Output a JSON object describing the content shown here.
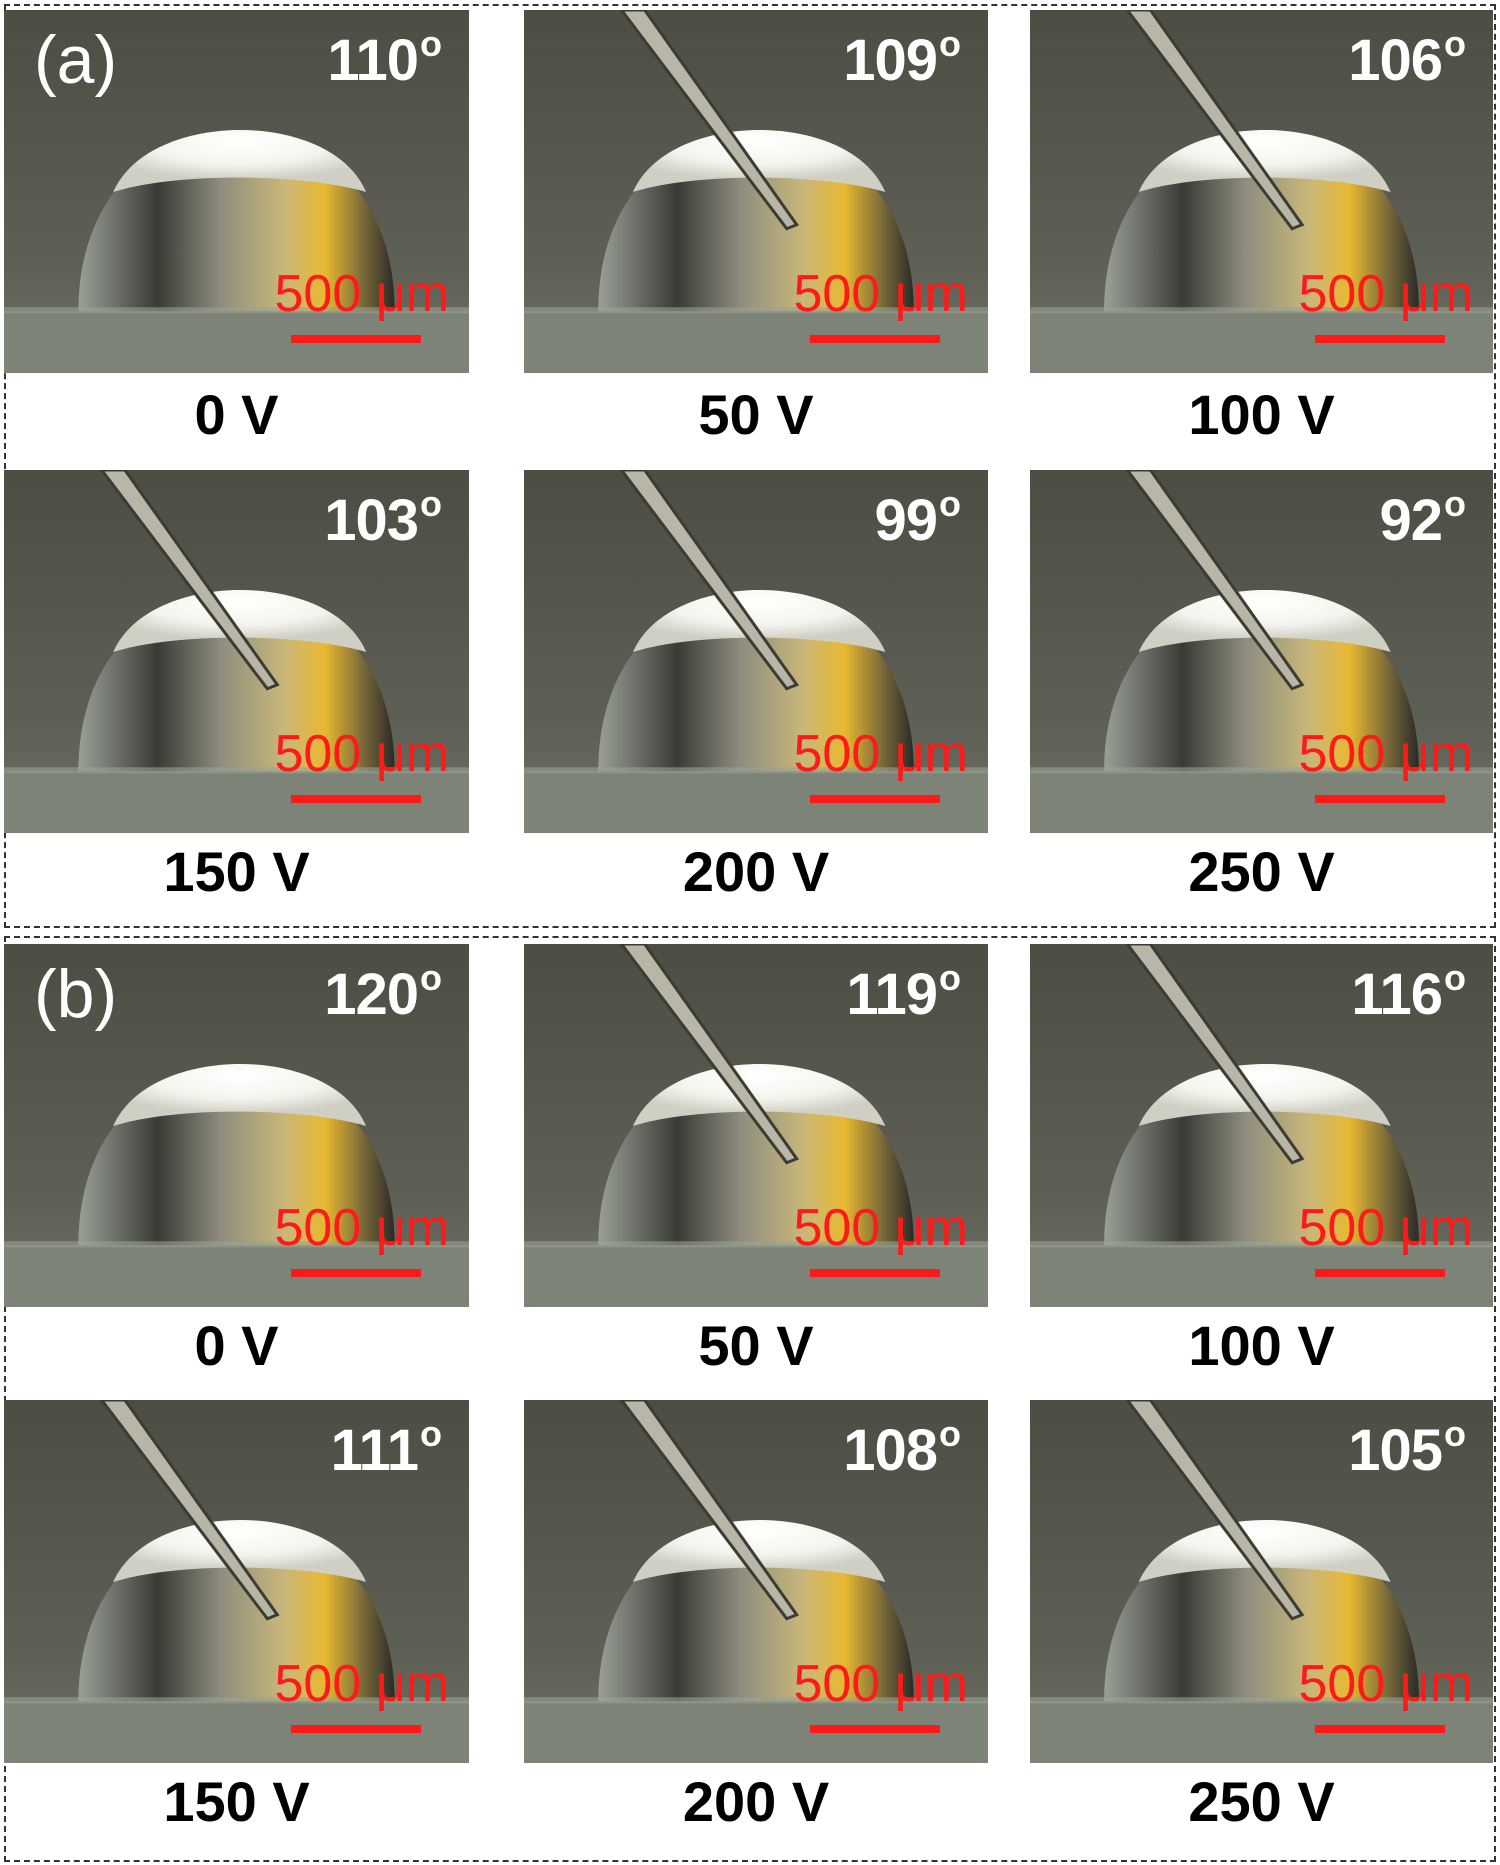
{
  "colors": {
    "scale": "#ff1a1a",
    "angle_text": "#ffffff",
    "background_photo": "#5a5a4e",
    "droplet_highlight": "#ffffff",
    "droplet_yellow": "#e8b830"
  },
  "panels": [
    {
      "label": "(a)",
      "cells": [
        {
          "angle": "110",
          "angle_unit": "o",
          "scale": "500 μm",
          "voltage": "0 V",
          "needle": false
        },
        {
          "angle": "109",
          "angle_unit": "o",
          "scale": "500 μm",
          "voltage": "50 V",
          "needle": true
        },
        {
          "angle": "106",
          "angle_unit": "o",
          "scale": "500 μm",
          "voltage": "100 V",
          "needle": true
        },
        {
          "angle": "103",
          "angle_unit": "o",
          "scale": "500 μm",
          "voltage": "150 V",
          "needle": true
        },
        {
          "angle": "99",
          "angle_unit": "o",
          "scale": "500 μm",
          "voltage": "200 V",
          "needle": true
        },
        {
          "angle": "92",
          "angle_unit": "o",
          "scale": "500 μm",
          "voltage": "250 V",
          "needle": true
        }
      ]
    },
    {
      "label": "(b)",
      "cells": [
        {
          "angle": "120",
          "angle_unit": "o",
          "scale": "500 μm",
          "voltage": "0 V",
          "needle": false
        },
        {
          "angle": "119",
          "angle_unit": "o",
          "scale": "500 μm",
          "voltage": "50 V",
          "needle": true
        },
        {
          "angle": "116",
          "angle_unit": "o",
          "scale": "500 μm",
          "voltage": "100 V",
          "needle": true
        },
        {
          "angle": "111",
          "angle_unit": "o",
          "scale": "500 μm",
          "voltage": "150 V",
          "needle": true
        },
        {
          "angle": "108",
          "angle_unit": "o",
          "scale": "500 μm",
          "voltage": "200 V",
          "needle": true
        },
        {
          "angle": "105",
          "angle_unit": "o",
          "scale": "500 μm",
          "voltage": "250 V",
          "needle": true
        }
      ]
    }
  ]
}
